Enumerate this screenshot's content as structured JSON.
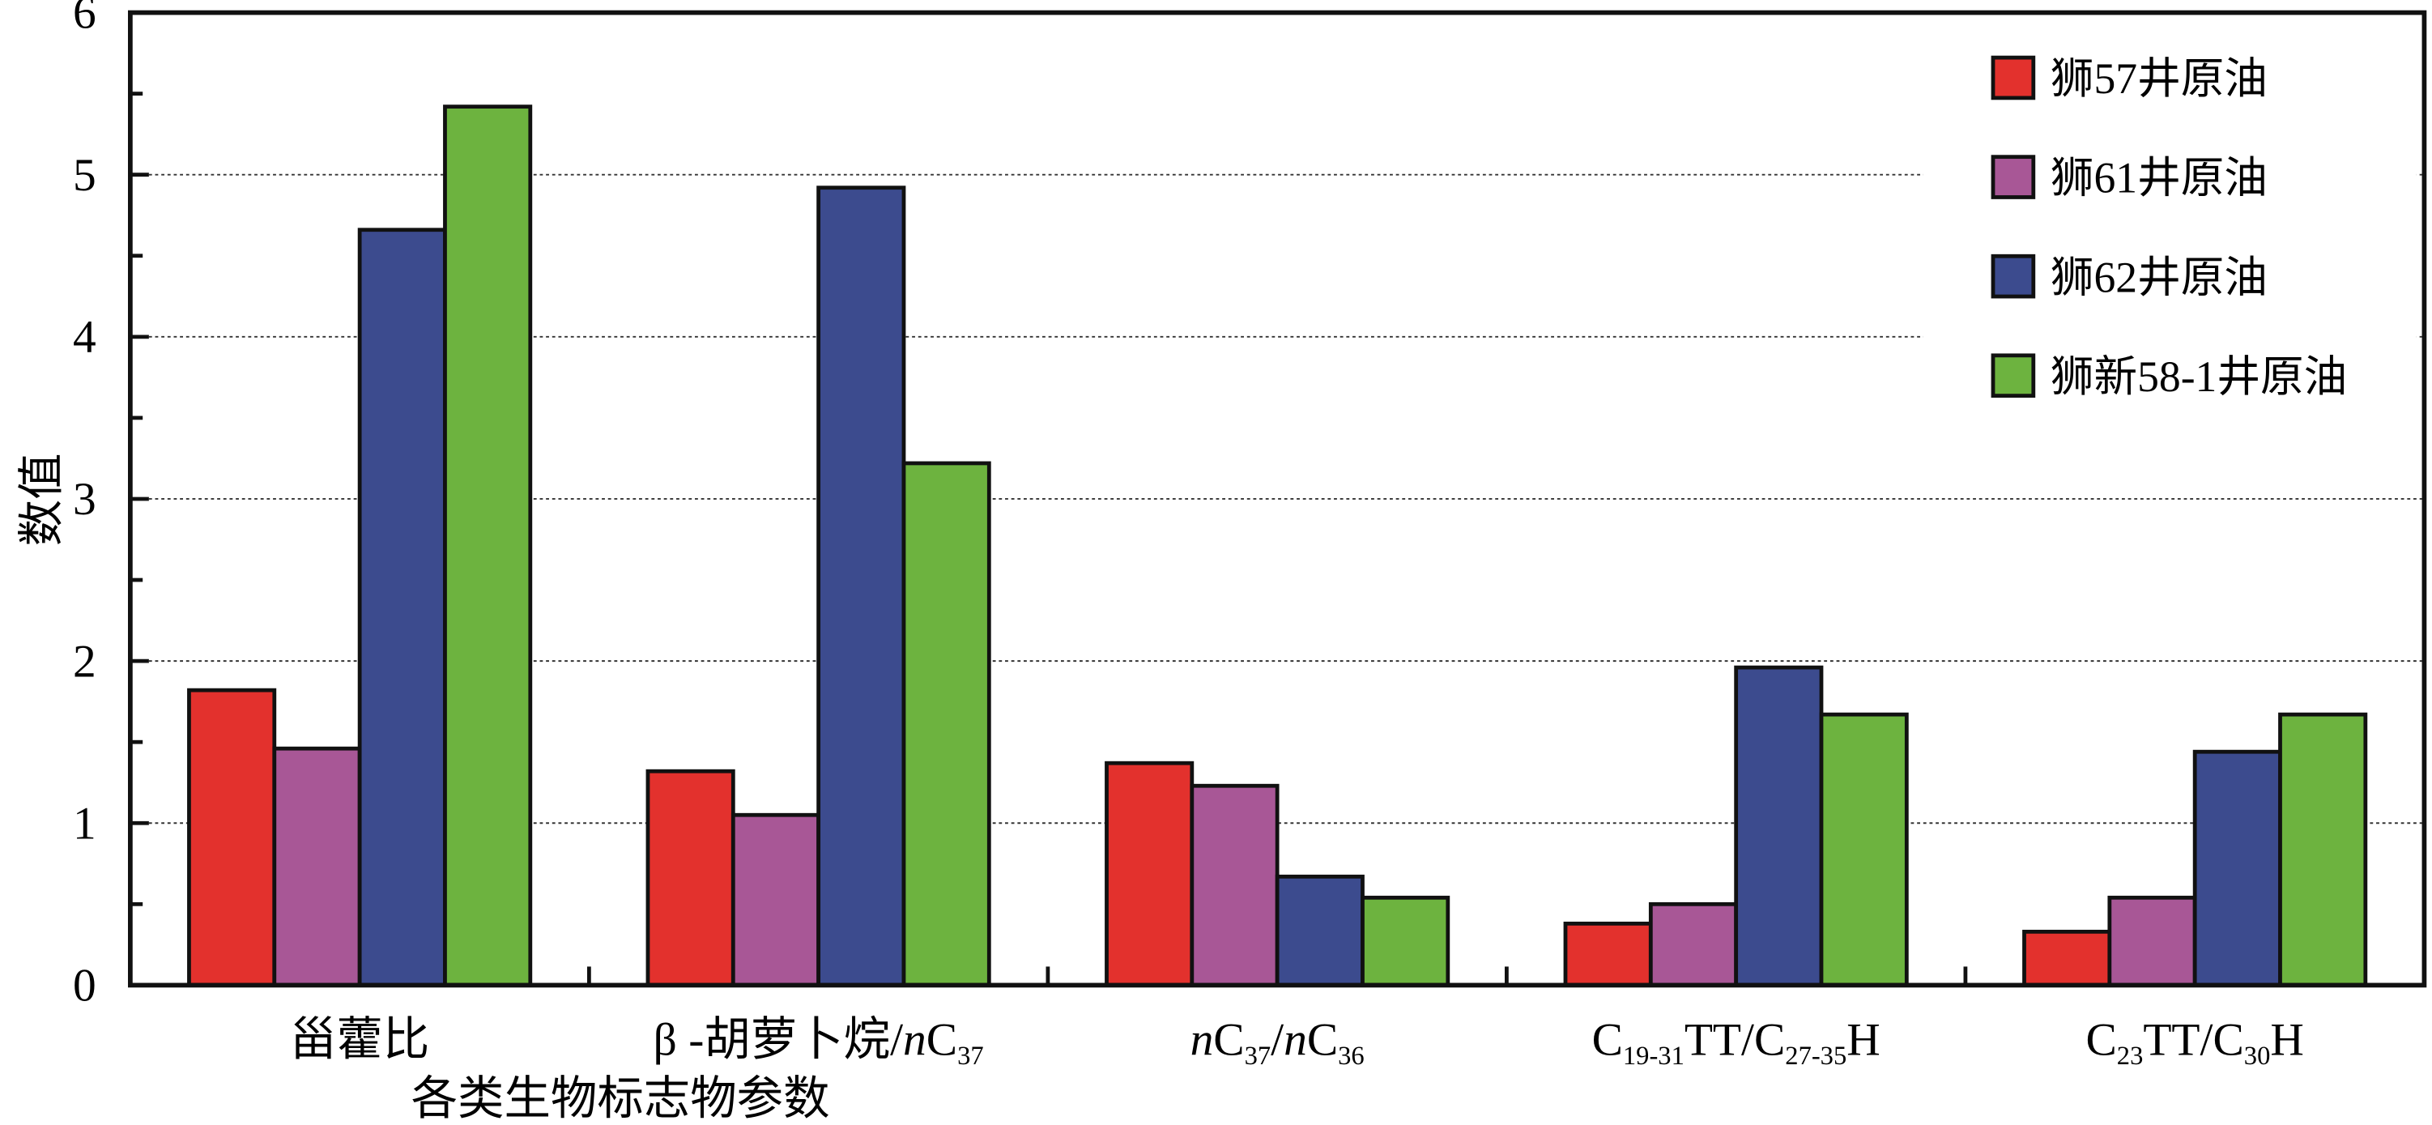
{
  "chart_data": {
    "type": "bar",
    "title": "",
    "xlabel": "各类生物标志物参数",
    "ylabel": "数值",
    "ylim": [
      0,
      6
    ],
    "yticks": [
      "0",
      "1",
      "2",
      "3",
      "4",
      "5",
      "6"
    ],
    "grid": "horizontal dotted at major ticks",
    "legend_position": "top-right",
    "categories": [
      [
        {
          "t": "甾藿比"
        }
      ],
      [
        {
          "t": "β -胡萝卜烷/"
        },
        {
          "t": "n",
          "i": true
        },
        {
          "t": "C"
        },
        {
          "t": "37",
          "sub": true
        }
      ],
      [
        {
          "t": "n",
          "i": true
        },
        {
          "t": "C"
        },
        {
          "t": "37",
          "sub": true
        },
        {
          "t": "/"
        },
        {
          "t": "n",
          "i": true
        },
        {
          "t": "C"
        },
        {
          "t": "36",
          "sub": true
        }
      ],
      [
        {
          "t": "C"
        },
        {
          "t": "19-31",
          "sub": true
        },
        {
          "t": "TT/C"
        },
        {
          "t": "27-35",
          "sub": true
        },
        {
          "t": "H"
        }
      ],
      [
        {
          "t": "C"
        },
        {
          "t": "23",
          "sub": true
        },
        {
          "t": "TT/C"
        },
        {
          "t": "30",
          "sub": true
        },
        {
          "t": "H"
        }
      ]
    ],
    "series": [
      {
        "name": "狮57井原油",
        "color": "#e3312d",
        "values": [
          1.82,
          1.32,
          1.37,
          0.38,
          0.33
        ]
      },
      {
        "name": "狮61井原油",
        "color": "#a85796",
        "values": [
          1.46,
          1.05,
          1.23,
          0.5,
          0.54
        ]
      },
      {
        "name": "狮62井原油",
        "color": "#3c4b8e",
        "values": [
          4.66,
          4.92,
          0.67,
          1.96,
          1.44
        ]
      },
      {
        "name": "狮新58-1井原油",
        "color": "#6db33f",
        "values": [
          5.42,
          3.22,
          0.54,
          1.67,
          1.67
        ]
      }
    ]
  }
}
